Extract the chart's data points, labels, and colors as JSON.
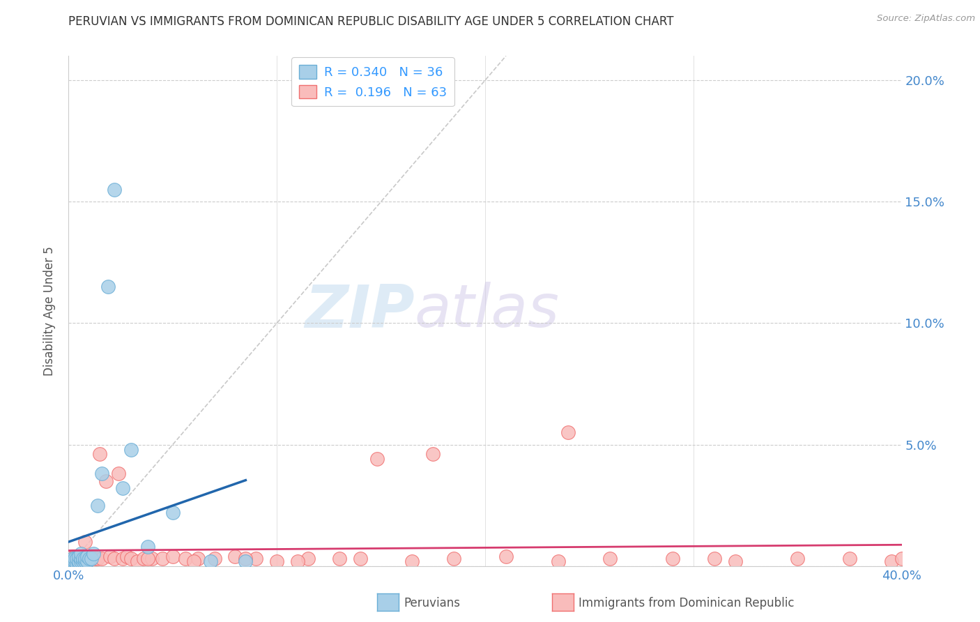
{
  "title": "PERUVIAN VS IMMIGRANTS FROM DOMINICAN REPUBLIC DISABILITY AGE UNDER 5 CORRELATION CHART",
  "source": "Source: ZipAtlas.com",
  "ylabel": "Disability Age Under 5",
  "xlim": [
    0.0,
    0.4
  ],
  "ylim": [
    0.0,
    0.21
  ],
  "peruvian_color": "#a8cfe8",
  "peruvian_edge_color": "#6aaed6",
  "dominican_color": "#f9bcbb",
  "dominican_edge_color": "#f07070",
  "regression_peruvian_color": "#2166ac",
  "regression_dominican_color": "#d63b6e",
  "diagonal_color": "#bbbbbb",
  "watermark_zip": "ZIP",
  "watermark_atlas": "atlas",
  "peruvian_x": [
    0.001,
    0.001,
    0.001,
    0.002,
    0.002,
    0.002,
    0.003,
    0.003,
    0.003,
    0.004,
    0.004,
    0.005,
    0.005,
    0.005,
    0.006,
    0.006,
    0.006,
    0.007,
    0.007,
    0.008,
    0.008,
    0.009,
    0.009,
    0.01,
    0.011,
    0.012,
    0.014,
    0.016,
    0.019,
    0.022,
    0.026,
    0.03,
    0.038,
    0.05,
    0.068,
    0.085
  ],
  "peruvian_y": [
    0.001,
    0.002,
    0.0,
    0.001,
    0.002,
    0.003,
    0.001,
    0.002,
    0.003,
    0.001,
    0.003,
    0.001,
    0.002,
    0.004,
    0.002,
    0.003,
    0.005,
    0.002,
    0.003,
    0.002,
    0.003,
    0.002,
    0.004,
    0.003,
    0.003,
    0.005,
    0.025,
    0.038,
    0.115,
    0.155,
    0.032,
    0.048,
    0.008,
    0.022,
    0.002,
    0.002
  ],
  "dominican_x": [
    0.001,
    0.001,
    0.002,
    0.002,
    0.003,
    0.003,
    0.004,
    0.004,
    0.005,
    0.005,
    0.006,
    0.007,
    0.007,
    0.008,
    0.008,
    0.009,
    0.01,
    0.011,
    0.012,
    0.013,
    0.014,
    0.015,
    0.016,
    0.018,
    0.02,
    0.022,
    0.024,
    0.026,
    0.028,
    0.03,
    0.033,
    0.036,
    0.04,
    0.045,
    0.05,
    0.056,
    0.062,
    0.07,
    0.08,
    0.09,
    0.1,
    0.115,
    0.13,
    0.148,
    0.165,
    0.185,
    0.21,
    0.235,
    0.26,
    0.29,
    0.32,
    0.35,
    0.375,
    0.395,
    0.4,
    0.31,
    0.24,
    0.175,
    0.14,
    0.11,
    0.085,
    0.06,
    0.038
  ],
  "dominican_y": [
    0.001,
    0.003,
    0.001,
    0.004,
    0.002,
    0.004,
    0.003,
    0.002,
    0.003,
    0.002,
    0.003,
    0.003,
    0.002,
    0.004,
    0.01,
    0.003,
    0.004,
    0.002,
    0.004,
    0.003,
    0.003,
    0.046,
    0.003,
    0.035,
    0.004,
    0.003,
    0.038,
    0.003,
    0.004,
    0.003,
    0.002,
    0.003,
    0.003,
    0.003,
    0.004,
    0.003,
    0.003,
    0.003,
    0.004,
    0.003,
    0.002,
    0.003,
    0.003,
    0.044,
    0.002,
    0.003,
    0.004,
    0.002,
    0.003,
    0.003,
    0.002,
    0.003,
    0.003,
    0.002,
    0.003,
    0.003,
    0.055,
    0.046,
    0.003,
    0.002,
    0.003,
    0.002,
    0.003
  ],
  "legend_text_1": "R = 0.340   N = 36",
  "legend_text_2": "R =  0.196   N = 63"
}
